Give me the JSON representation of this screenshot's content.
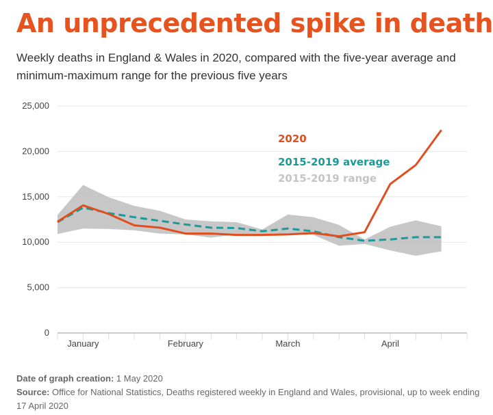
{
  "title": "An unprecedented spike in deaths",
  "subtitle": "Weekly deaths in England & Wales in 2020, compared with the five-year average and minimum-maximum range for the previous five years",
  "colors": {
    "title": "#e6531f",
    "line_2020": "#e04e1e",
    "average": "#1b9a9a",
    "range": "#bdbdbd"
  },
  "footer": {
    "date_label": "Date of graph creation:",
    "date_value": "1 May 2020",
    "source_label": "Source:",
    "source_value": "Office for National Statistics, Deaths registered weekly in England and Wales, provisional, up to week ending 17 April 2020"
  },
  "chart_data": {
    "type": "line",
    "title": "",
    "xlabel": "",
    "ylabel": "",
    "ylim": [
      0,
      25000
    ],
    "yticks": [
      0,
      5000,
      10000,
      15000,
      20000,
      25000
    ],
    "ytick_labels": [
      "0",
      "5,000",
      "10,000",
      "15,000",
      "20,000",
      "25,000"
    ],
    "grid": "horizontal",
    "weeks": [
      1,
      2,
      3,
      4,
      5,
      6,
      7,
      8,
      9,
      10,
      11,
      12,
      13,
      14,
      15,
      16
    ],
    "month_labels": [
      {
        "label": "January",
        "week": 2
      },
      {
        "label": "February",
        "week": 6
      },
      {
        "label": "March",
        "week": 10
      },
      {
        "label": "April",
        "week": 14
      }
    ],
    "series": [
      {
        "name": "2020",
        "values": [
          12250,
          14050,
          13100,
          11850,
          11600,
          10950,
          10950,
          10800,
          10800,
          10850,
          11000,
          10650,
          11100,
          16400,
          18500,
          22350
        ]
      },
      {
        "name": "2015-2019 average",
        "values": [
          12200,
          13800,
          13200,
          12750,
          12350,
          11950,
          11600,
          11550,
          11200,
          11500,
          11200,
          10550,
          10150,
          10300,
          10550,
          10550
        ]
      }
    ],
    "range": {
      "name": "2015-2019 range",
      "min": [
        10900,
        11500,
        11450,
        11300,
        10950,
        10850,
        10500,
        10850,
        10800,
        10900,
        10800,
        9600,
        9800,
        9100,
        8500,
        9000
      ],
      "max": [
        13000,
        16300,
        14950,
        14000,
        13450,
        12500,
        12300,
        12200,
        11400,
        13050,
        12750,
        11900,
        10300,
        11700,
        12400,
        11750
      ]
    },
    "legend": [
      "2020",
      "2015-2019 average",
      "2015-2019 range"
    ],
    "legend_placement": "inside, upper-right"
  }
}
